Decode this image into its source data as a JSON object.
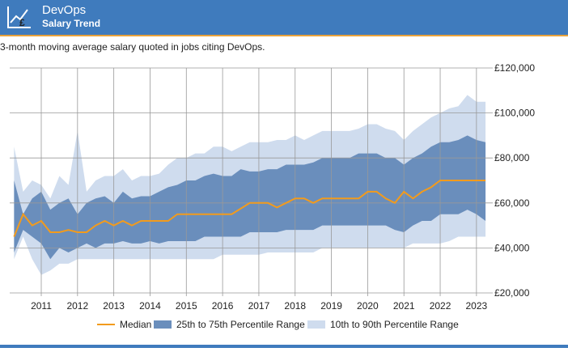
{
  "header": {
    "title": "DevOps",
    "subtitle": "Salary Trend"
  },
  "chart_data": {
    "type": "line",
    "description": "3-month moving average salary quoted in jobs citing DevOps.",
    "x": [
      2010.25,
      2010.5,
      2010.75,
      2011,
      2011.25,
      2011.5,
      2011.75,
      2012,
      2012.25,
      2012.5,
      2012.75,
      2013,
      2013.25,
      2013.5,
      2013.75,
      2014,
      2014.25,
      2014.5,
      2014.75,
      2015,
      2015.25,
      2015.5,
      2015.75,
      2016,
      2016.25,
      2016.5,
      2016.75,
      2017,
      2017.25,
      2017.5,
      2017.75,
      2018,
      2018.25,
      2018.5,
      2018.75,
      2019,
      2019.25,
      2019.5,
      2019.75,
      2020,
      2020.25,
      2020.5,
      2020.75,
      2021,
      2021.25,
      2021.5,
      2021.75,
      2022,
      2022.25,
      2022.5,
      2022.75,
      2023,
      2023.25
    ],
    "xlim": [
      2010.13,
      2023.36
    ],
    "xticks": [
      2011,
      2012,
      2013,
      2014,
      2015,
      2016,
      2017,
      2018,
      2019,
      2020,
      2021,
      2022,
      2023
    ],
    "ylim": [
      20000,
      120000
    ],
    "yticks": [
      {
        "value": 20000,
        "label": "£20,000"
      },
      {
        "value": 40000,
        "label": "£40,000"
      },
      {
        "value": 60000,
        "label": "£60,000"
      },
      {
        "value": 80000,
        "label": "£80,000"
      },
      {
        "value": 100000,
        "label": "£100,000"
      },
      {
        "value": 120000,
        "label": "£120,000"
      }
    ],
    "grid": true,
    "legend": "bottom",
    "series": [
      {
        "name": "Median",
        "color": "#f29b1d",
        "values": [
          45000,
          55000,
          50000,
          52000,
          47000,
          47000,
          48000,
          47000,
          47000,
          50000,
          52000,
          50000,
          52000,
          50000,
          52000,
          52000,
          52000,
          52000,
          55000,
          55000,
          55000,
          55000,
          55000,
          55000,
          55000,
          57500,
          60000,
          60000,
          60000,
          58000,
          60000,
          62000,
          62000,
          60000,
          62000,
          62000,
          62000,
          62000,
          62000,
          65000,
          65000,
          62000,
          60000,
          65000,
          62000,
          65000,
          67000,
          70000,
          70000,
          70000,
          70000,
          70000,
          70000
        ]
      }
    ],
    "bands": [
      {
        "name": "25th to 75th Percentile Range",
        "color": "#6a8ebc",
        "low": [
          38000,
          48000,
          45000,
          42000,
          35000,
          40000,
          38000,
          40000,
          42000,
          40000,
          42000,
          42000,
          43000,
          42000,
          42000,
          43000,
          42000,
          43000,
          43000,
          43000,
          43000,
          45000,
          45000,
          45000,
          45000,
          45000,
          47000,
          47000,
          47000,
          47000,
          48000,
          48000,
          48000,
          48000,
          50000,
          50000,
          50000,
          50000,
          50000,
          50000,
          50000,
          50000,
          48000,
          47000,
          50000,
          52000,
          52000,
          55000,
          55000,
          55000,
          57000,
          55000,
          52000
        ],
        "high": [
          70000,
          55000,
          62000,
          65000,
          57000,
          60000,
          62000,
          55000,
          60000,
          62000,
          63000,
          60000,
          65000,
          62000,
          63000,
          63000,
          65000,
          67000,
          68000,
          70000,
          70000,
          72000,
          73000,
          72000,
          72000,
          75000,
          74000,
          74000,
          75000,
          75000,
          77000,
          77000,
          77000,
          78000,
          80000,
          80000,
          80000,
          80000,
          82000,
          82000,
          82000,
          80000,
          80000,
          77000,
          80000,
          82000,
          85000,
          87000,
          87000,
          88000,
          90000,
          88000,
          87000
        ]
      },
      {
        "name": "10th to 90th Percentile Range",
        "color": "#cfdcee",
        "low": [
          35000,
          45000,
          35000,
          28000,
          30000,
          33000,
          33000,
          35000,
          35000,
          35000,
          35000,
          35000,
          35000,
          35000,
          35000,
          35000,
          35000,
          35000,
          35000,
          35000,
          35000,
          35000,
          35000,
          37000,
          37000,
          37000,
          37000,
          37000,
          38000,
          38000,
          38000,
          38000,
          38000,
          38000,
          40000,
          40000,
          40000,
          40000,
          40000,
          40000,
          40000,
          40000,
          40000,
          40000,
          42000,
          42000,
          42000,
          42000,
          43000,
          45000,
          45000,
          45000,
          45000
        ],
        "high": [
          85000,
          65000,
          70000,
          68000,
          62000,
          72000,
          68000,
          92000,
          65000,
          70000,
          72000,
          72000,
          75000,
          70000,
          72000,
          72000,
          73000,
          77000,
          80000,
          80000,
          82000,
          82000,
          85000,
          85000,
          83000,
          85000,
          87000,
          87000,
          87000,
          88000,
          88000,
          90000,
          88000,
          90000,
          92000,
          92000,
          92000,
          92000,
          93000,
          95000,
          95000,
          93000,
          92000,
          88000,
          92000,
          95000,
          98000,
          100000,
          102000,
          103000,
          108000,
          105000,
          105000
        ]
      }
    ]
  }
}
